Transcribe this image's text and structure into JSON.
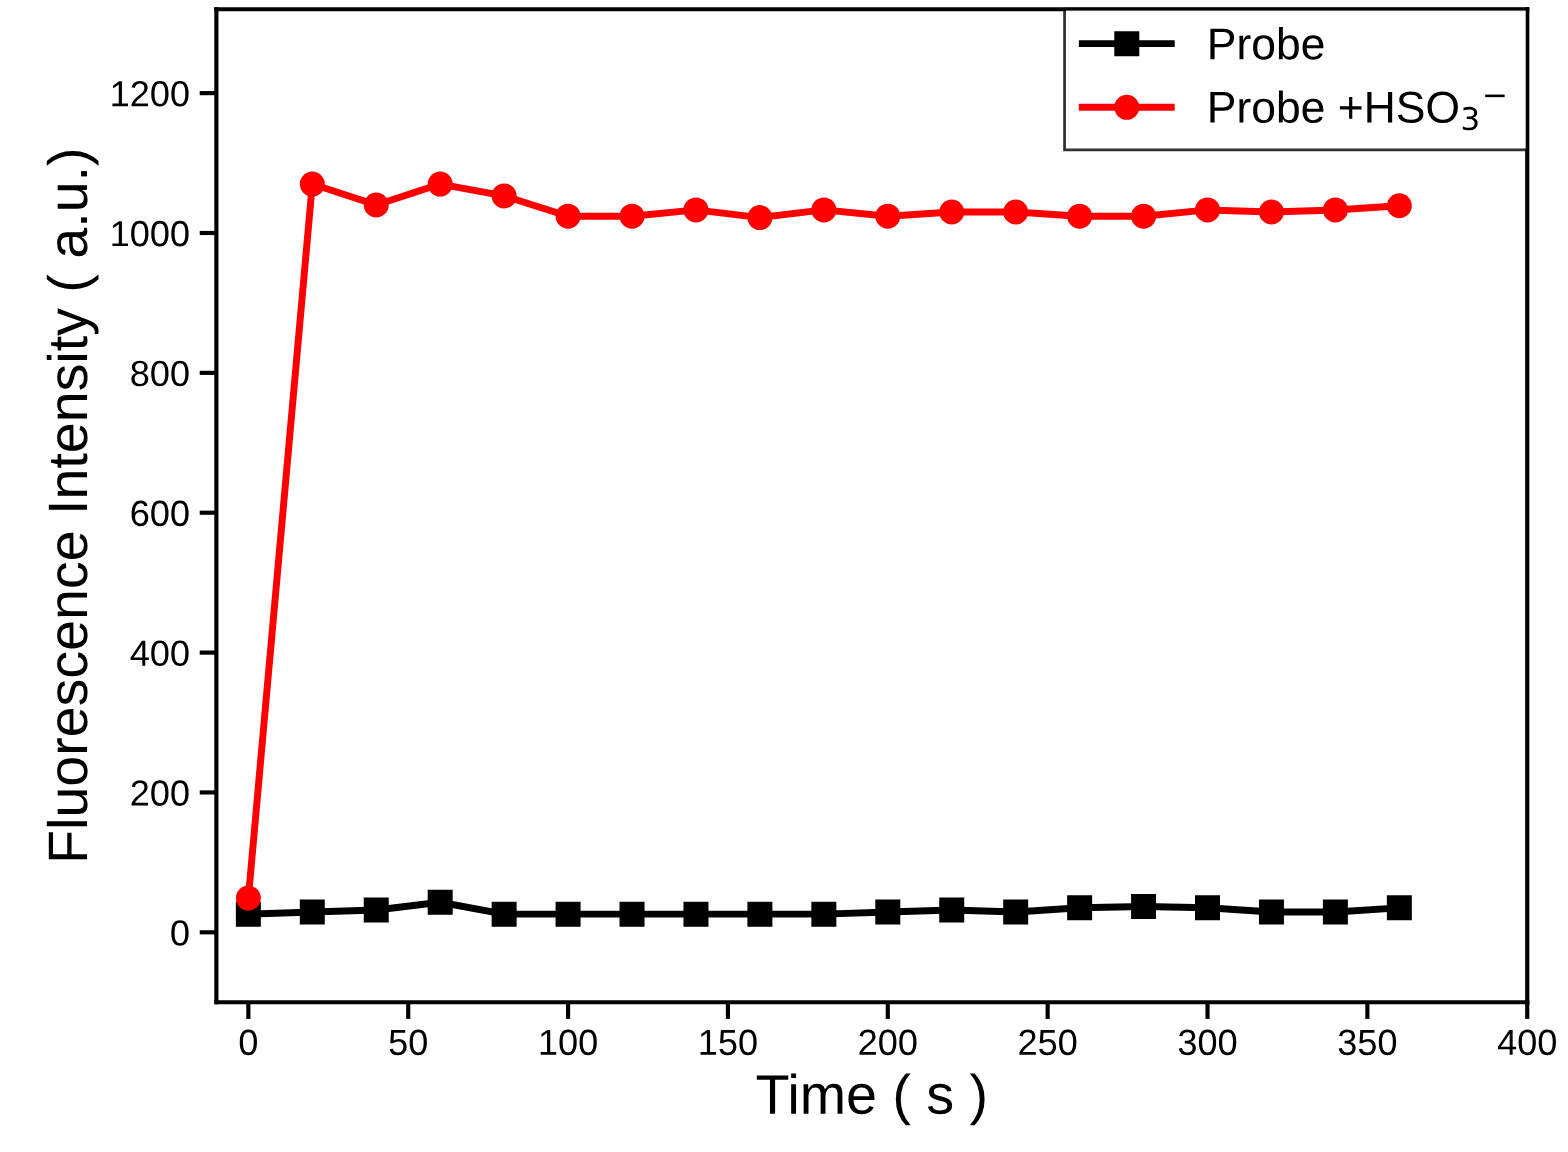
{
  "chart_data": {
    "type": "line",
    "xlabel": "Time ( s )",
    "ylabel": "Fluorescence Intensity ( a.u.)",
    "x": [
      0,
      20,
      40,
      60,
      80,
      100,
      120,
      140,
      160,
      180,
      200,
      220,
      240,
      260,
      280,
      300,
      320,
      340,
      360
    ],
    "series": [
      {
        "name": "Probe",
        "color": "#000000",
        "marker": "square",
        "values": [
          26,
          29,
          32,
          43,
          26,
          26,
          26,
          26,
          26,
          26,
          29,
          32,
          29,
          35,
          37,
          35,
          29,
          29,
          35
        ]
      },
      {
        "name": "Probe +HSO$_{3}$$^{−}$",
        "color": "#ff0000",
        "marker": "circle",
        "values": [
          49,
          1070,
          1040,
          1070,
          1053,
          1024,
          1024,
          1033,
          1022,
          1033,
          1024,
          1030,
          1030,
          1024,
          1024,
          1033,
          1030,
          1033,
          1039
        ]
      }
    ],
    "xlim": [
      -10,
      400
    ],
    "xticks": [
      0,
      50,
      100,
      150,
      200,
      250,
      300,
      350,
      400
    ],
    "ylim": [
      -100,
      1320
    ],
    "yticks": [
      0,
      200,
      400,
      600,
      800,
      1000,
      1200
    ],
    "grid": false,
    "legend": "top right",
    "line_style": "solid"
  }
}
